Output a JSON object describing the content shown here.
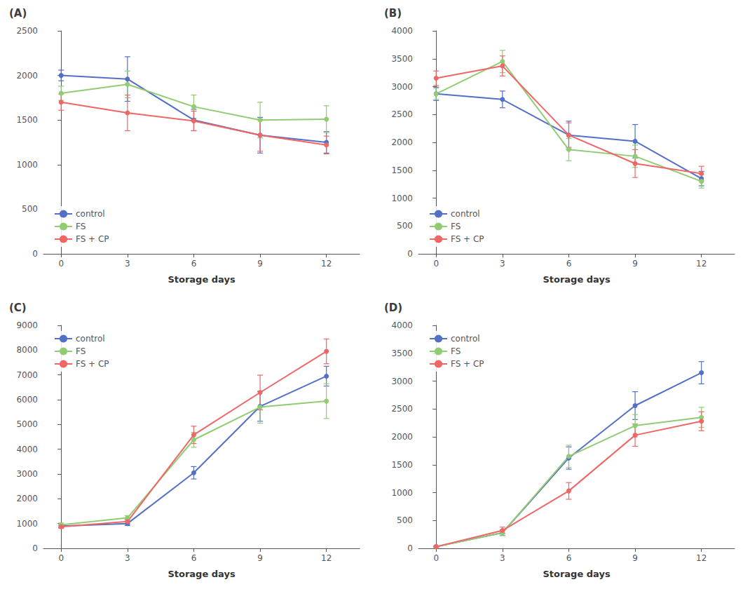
{
  "chart_data": [
    {
      "type": "line",
      "title": "(A)",
      "xlabel": "Storage days",
      "x": [
        0,
        3,
        6,
        9,
        12
      ],
      "xlim": [
        -0.8,
        13.5
      ],
      "xticks": [
        0,
        3,
        6,
        9,
        12
      ],
      "ylim": [
        0,
        2500
      ],
      "yticks": [
        0,
        500,
        1000,
        1500,
        2000,
        2500
      ],
      "legend": "lower left",
      "grid": false,
      "series": [
        {
          "name": "control",
          "values": [
            2000,
            1960,
            1500,
            1330,
            1250
          ],
          "yerr": [
            60,
            250,
            120,
            200,
            120
          ],
          "marker": "circle"
        },
        {
          "name": "FS",
          "values": [
            1800,
            1900,
            1650,
            1500,
            1510
          ],
          "yerr": [
            80,
            150,
            130,
            200,
            150
          ],
          "marker": "circle"
        },
        {
          "name": "FS + CP",
          "values": [
            1700,
            1580,
            1490,
            1330,
            1220
          ],
          "yerr": [
            90,
            200,
            110,
            180,
            100
          ],
          "marker": "circle"
        }
      ]
    },
    {
      "type": "line",
      "title": "(B)",
      "xlabel": "Storage days",
      "x": [
        0,
        3,
        6,
        9,
        12
      ],
      "xlim": [
        -0.8,
        13.5
      ],
      "xticks": [
        0,
        3,
        6,
        9,
        12
      ],
      "ylim": [
        0,
        4000
      ],
      "yticks": [
        0,
        500,
        1000,
        1500,
        2000,
        2500,
        3000,
        3500,
        4000
      ],
      "legend": "lower left",
      "grid": false,
      "series": [
        {
          "name": "control",
          "values": [
            2870,
            2770,
            2130,
            2020,
            1350
          ],
          "yerr": [
            120,
            150,
            250,
            300,
            130
          ],
          "marker": "circle"
        },
        {
          "name": "FS",
          "values": [
            2870,
            3450,
            1870,
            1750,
            1300
          ],
          "yerr": [
            100,
            200,
            200,
            200,
            120
          ],
          "marker": "circle"
        },
        {
          "name": "FS + CP",
          "values": [
            3150,
            3370,
            2130,
            1620,
            1440
          ],
          "yerr": [
            130,
            180,
            220,
            250,
            130
          ],
          "marker": "circle"
        }
      ]
    },
    {
      "type": "line",
      "title": "(C)",
      "xlabel": "Storage days",
      "x": [
        0,
        3,
        6,
        9,
        12
      ],
      "xlim": [
        -0.8,
        13.5
      ],
      "xticks": [
        0,
        3,
        6,
        9,
        12
      ],
      "ylim": [
        0,
        9000
      ],
      "yticks": [
        0,
        1000,
        2000,
        3000,
        4000,
        5000,
        6000,
        7000,
        8000,
        9000
      ],
      "legend": "upper left",
      "grid": false,
      "series": [
        {
          "name": "control",
          "values": [
            900,
            1000,
            3050,
            5730,
            6950
          ],
          "yerr": [
            60,
            80,
            250,
            600,
            400
          ],
          "marker": "circle"
        },
        {
          "name": "FS",
          "values": [
            950,
            1230,
            4380,
            5700,
            5940
          ],
          "yerr": [
            70,
            90,
            300,
            650,
            700
          ],
          "marker": "circle"
        },
        {
          "name": "FS + CP",
          "values": [
            870,
            1080,
            4580,
            6290,
            7950
          ],
          "yerr": [
            60,
            100,
            350,
            700,
            500
          ],
          "marker": "circle"
        }
      ]
    },
    {
      "type": "line",
      "title": "(D)",
      "xlabel": "Storage days",
      "x": [
        0,
        3,
        6,
        9,
        12
      ],
      "xlim": [
        -0.8,
        13.5
      ],
      "xticks": [
        0,
        3,
        6,
        9,
        12
      ],
      "ylim": [
        0,
        4000
      ],
      "yticks": [
        0,
        500,
        1000,
        1500,
        2000,
        2500,
        3000,
        3500,
        4000
      ],
      "legend": "upper left",
      "grid": false,
      "series": [
        {
          "name": "control",
          "values": [
            30,
            280,
            1620,
            2560,
            3150
          ],
          "yerr": [
            10,
            50,
            200,
            250,
            200
          ],
          "marker": "circle"
        },
        {
          "name": "FS",
          "values": [
            30,
            280,
            1650,
            2200,
            2350
          ],
          "yerr": [
            10,
            50,
            200,
            200,
            180
          ],
          "marker": "circle"
        },
        {
          "name": "FS + CP",
          "values": [
            30,
            320,
            1030,
            2030,
            2280
          ],
          "yerr": [
            10,
            60,
            150,
            200,
            170
          ],
          "marker": "circle"
        }
      ]
    }
  ]
}
